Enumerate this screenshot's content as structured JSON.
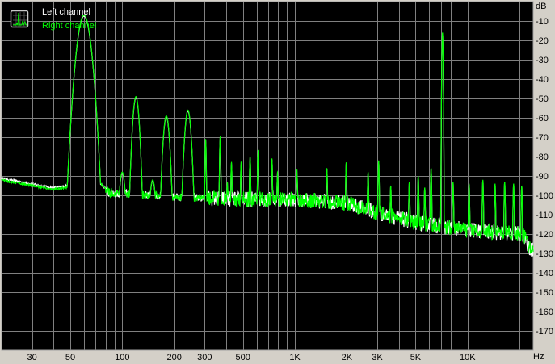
{
  "chart_data": {
    "type": "line",
    "title": "",
    "xlabel": "Hz",
    "ylabel": "dB",
    "x_scale": "log",
    "xlim": [
      20,
      24000
    ],
    "ylim": [
      -180,
      0
    ],
    "grid": true,
    "legend_placement": "top-left",
    "x_tick_labels": [
      {
        "value": 30,
        "label": "30"
      },
      {
        "value": 50,
        "label": "50"
      },
      {
        "value": 100,
        "label": "100"
      },
      {
        "value": 200,
        "label": "200"
      },
      {
        "value": 300,
        "label": "300"
      },
      {
        "value": 500,
        "label": "500"
      },
      {
        "value": 1000,
        "label": "1K"
      },
      {
        "value": 2000,
        "label": "2K"
      },
      {
        "value": 3000,
        "label": "3K"
      },
      {
        "value": 5000,
        "label": "5K"
      },
      {
        "value": 10000,
        "label": "10K"
      }
    ],
    "y_tick_labels": [
      {
        "value": -10,
        "label": "-10"
      },
      {
        "value": -20,
        "label": "-20"
      },
      {
        "value": -30,
        "label": "-30"
      },
      {
        "value": -40,
        "label": "-40"
      },
      {
        "value": -50,
        "label": "-50"
      },
      {
        "value": -60,
        "label": "-60"
      },
      {
        "value": -70,
        "label": "-70"
      },
      {
        "value": -80,
        "label": "-80"
      },
      {
        "value": -90,
        "label": "-90"
      },
      {
        "value": -100,
        "label": "-100"
      },
      {
        "value": -110,
        "label": "-110"
      },
      {
        "value": -120,
        "label": "-120"
      },
      {
        "value": -130,
        "label": "-130"
      },
      {
        "value": -140,
        "label": "-140"
      },
      {
        "value": -150,
        "label": "-150"
      },
      {
        "value": -160,
        "label": "-160"
      },
      {
        "value": -170,
        "label": "-170"
      }
    ],
    "noise_floor": [
      [
        20,
        -92
      ],
      [
        30,
        -95
      ],
      [
        40,
        -97
      ],
      [
        47,
        -96
      ],
      [
        75,
        -94
      ],
      [
        85,
        -99
      ],
      [
        100,
        -99
      ],
      [
        150,
        -100
      ],
      [
        200,
        -101
      ],
      [
        500,
        -102
      ],
      [
        1000,
        -102
      ],
      [
        2000,
        -104
      ],
      [
        3000,
        -109
      ],
      [
        5000,
        -114
      ],
      [
        10000,
        -118
      ],
      [
        20000,
        -120
      ],
      [
        21500,
        -121
      ],
      [
        22500,
        -127
      ],
      [
        24000,
        -128
      ]
    ],
    "peaks": [
      [
        60,
        -7
      ],
      [
        100,
        -88
      ],
      [
        120,
        -49
      ],
      [
        150,
        -92
      ],
      [
        180,
        -59
      ],
      [
        240,
        -56
      ],
      [
        304,
        -71
      ],
      [
        369,
        -70
      ],
      [
        406,
        -93
      ],
      [
        429,
        -83
      ],
      [
        488,
        -83
      ],
      [
        550,
        -80
      ],
      [
        612,
        -77
      ],
      [
        736,
        -81
      ],
      [
        793,
        -88
      ],
      [
        1027,
        -87
      ],
      [
        1531,
        -86
      ],
      [
        1983,
        -83
      ],
      [
        2654,
        -88
      ],
      [
        3055,
        -82
      ],
      [
        3590,
        -95
      ],
      [
        4600,
        -93
      ],
      [
        5180,
        -90
      ],
      [
        5650,
        -96
      ],
      [
        6150,
        -86
      ],
      [
        7160,
        -16
      ],
      [
        8240,
        -93
      ],
      [
        10210,
        -94
      ],
      [
        12270,
        -92
      ],
      [
        14430,
        -94
      ],
      [
        16410,
        -93
      ],
      [
        18490,
        -94
      ],
      [
        20600,
        -95
      ]
    ],
    "series": [
      {
        "name": "Left channel",
        "color": "#ffffff"
      },
      {
        "name": "Right channel",
        "color": "#00ff00"
      }
    ]
  },
  "axis": {
    "y_unit": "dB",
    "x_unit": "Hz"
  },
  "colors": {
    "background": "#000000",
    "grid": "#808080",
    "panel": "#d4d0c8"
  }
}
